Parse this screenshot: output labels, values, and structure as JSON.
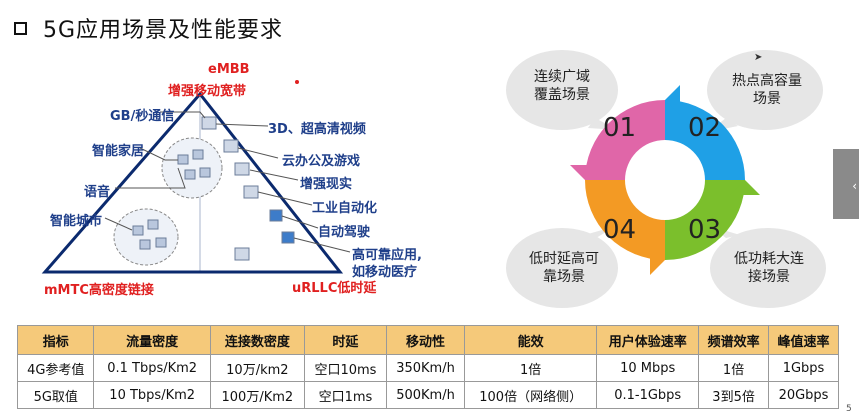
{
  "slide": {
    "title": "5G应用场景及性能要求"
  },
  "triangle": {
    "top_label_en": "eMBB",
    "top_label_cn": "增强移动宽带",
    "bottom_left_label": "mMTC高密度链接",
    "bottom_right_label": "uRLLC低时延",
    "items": [
      "GB/秒通信",
      "智能家居",
      "语音",
      "智能城市",
      "3D、超高清视频",
      "云办公及游戏",
      "增强现实",
      "工业自动化",
      "自动驾驶",
      "高可靠应用,",
      "如移动医疗"
    ],
    "colors": {
      "edge": "#0b2a6e",
      "accent_red": "#e02020",
      "label_blue": "#1f3f8a"
    }
  },
  "circle": {
    "segments": [
      {
        "num": "01",
        "color": "#e066a8",
        "text_line1": "连续广域",
        "text_line2": "覆盖场景"
      },
      {
        "num": "02",
        "color": "#1fa0e6",
        "text_line1": "热点高容量",
        "text_line2": "场景"
      },
      {
        "num": "03",
        "color": "#7bbf2c",
        "text_line1": "低功耗大连",
        "text_line2": "接场景"
      },
      {
        "num": "04",
        "color": "#f39a24",
        "text_line1": "低时延高可",
        "text_line2": "靠场景"
      }
    ],
    "bubble_color": "#e6e6e6"
  },
  "table": {
    "headers": [
      "指标",
      "流量密度",
      "连接数密度",
      "时延",
      "移动性",
      "能效",
      "用户体验速率",
      "频谱效率",
      "峰值速率"
    ],
    "rows": [
      [
        "4G参考值",
        "0.1 Tbps/Km2",
        "10万/km2",
        "空口10ms",
        "350Km/h",
        "1倍",
        "10 Mbps",
        "1倍",
        "1Gbps"
      ],
      [
        "5G取值",
        "10 Tbps/Km2",
        "100万/Km2",
        "空口1ms",
        "500Km/h",
        "100倍（网络侧）",
        "0.1-1Gbps",
        "3到5倍",
        "20Gbps"
      ]
    ],
    "header_color": "#f5c97a"
  },
  "ui": {
    "side_button_glyph": "‹",
    "corner_mark": "5"
  }
}
